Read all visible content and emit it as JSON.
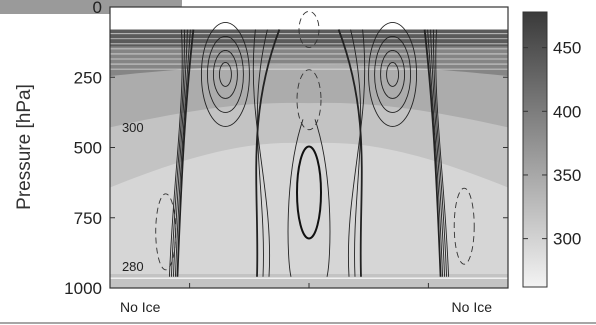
{
  "chart_data": {
    "type": "heatmap",
    "ylabel": "Pressure [hPa]",
    "y_axis": {
      "ticks": [
        0,
        250,
        500,
        750,
        1000
      ],
      "tick_labels": [
        "0",
        "250",
        "500",
        "750",
        "1000"
      ],
      "range": [
        0,
        1000
      ],
      "inverted": true
    },
    "x_axis": {
      "range": [
        0,
        1
      ],
      "end_labels": [
        "No Ice",
        "No Ice"
      ],
      "minor_ticks": [
        0.2,
        0.5,
        0.8
      ]
    },
    "colorbar": {
      "ticks": [
        300,
        350,
        400,
        450
      ],
      "range": [
        262,
        478
      ],
      "colors": [
        "#f3f3f3",
        "#3a3a3a"
      ]
    },
    "fill_bands": [
      {
        "p_top": 80,
        "p_bottom": 140,
        "value": 440
      },
      {
        "p_top": 140,
        "p_bottom": 210,
        "value": 390
      },
      {
        "p_top": 210,
        "p_bottom": 350,
        "value": 345
      },
      {
        "p_top": 350,
        "p_bottom": 500,
        "value": 318
      },
      {
        "p_top": 500,
        "p_bottom": 950,
        "value": 296
      }
    ],
    "contour_labels": [
      {
        "text": "300",
        "x": 0.02,
        "p": 445
      },
      {
        "text": "280",
        "x": 0.02,
        "p": 940
      }
    ],
    "wind_contours": {
      "solid_jet_centers": [
        {
          "x": 0.29,
          "p": 240
        },
        {
          "x": 0.71,
          "p": 240
        }
      ],
      "dashed_centers": [
        {
          "x": 0.5,
          "p": 80
        },
        {
          "x": 0.5,
          "p": 330
        },
        {
          "x": 0.14,
          "p": 800
        },
        {
          "x": 0.89,
          "p": 780
        }
      ],
      "thick_center": {
        "x": 0.5,
        "p": 660
      }
    }
  }
}
